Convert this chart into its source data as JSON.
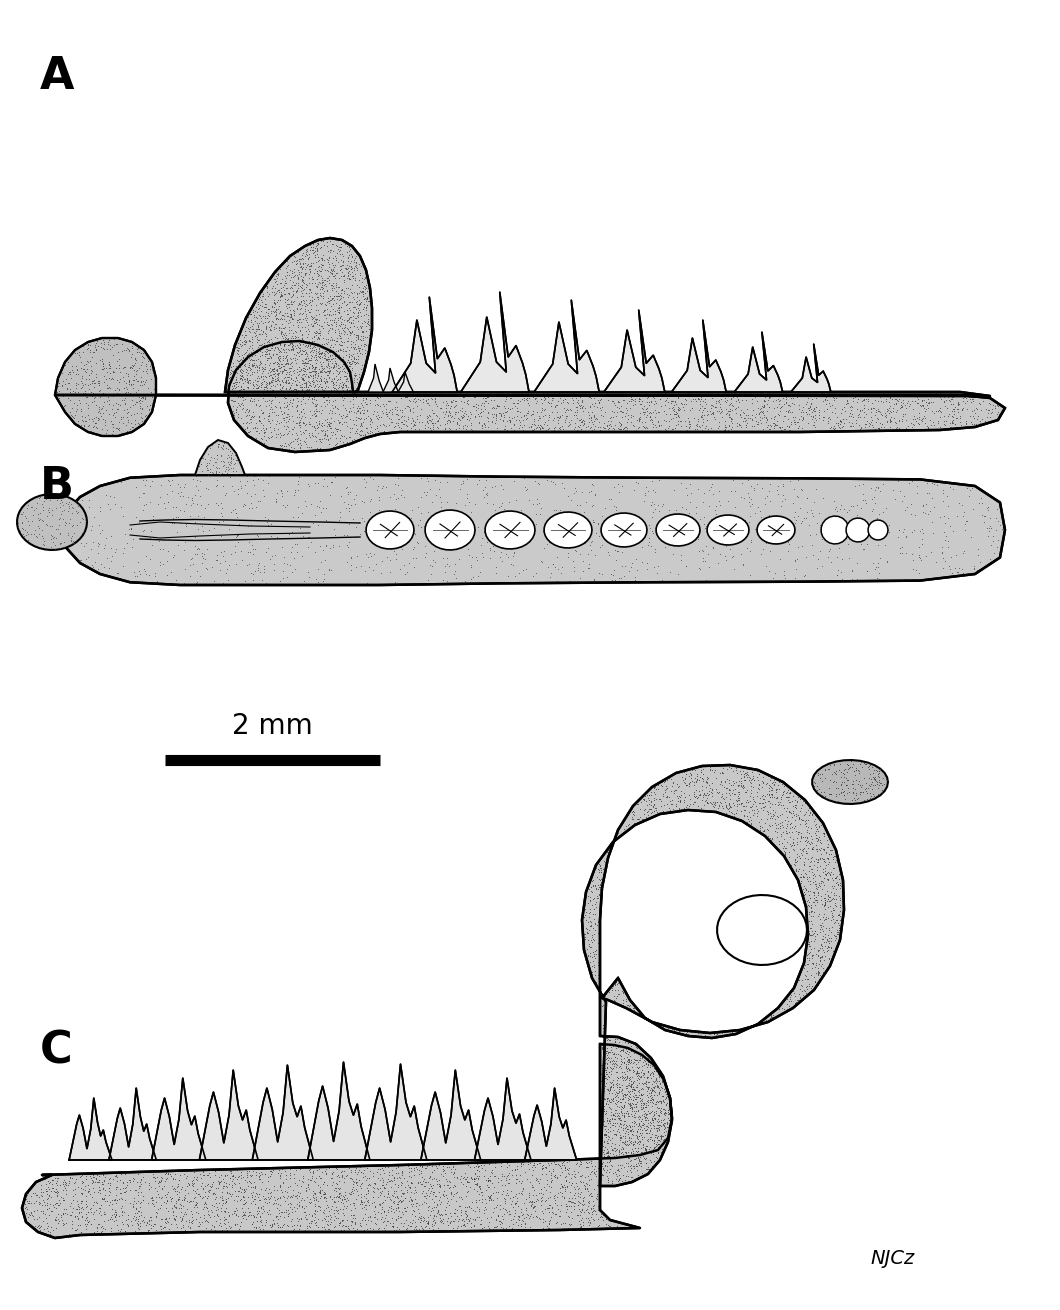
{
  "background_color": "#ffffff",
  "label_A": "A",
  "label_B": "B",
  "label_C": "C",
  "scalebar_text": "2 mm",
  "artist_sig": "NJCz",
  "label_fontsize": 32,
  "scalebar_fontsize": 20,
  "sig_fontsize": 14,
  "fig_width": 10.6,
  "fig_height": 13.1
}
